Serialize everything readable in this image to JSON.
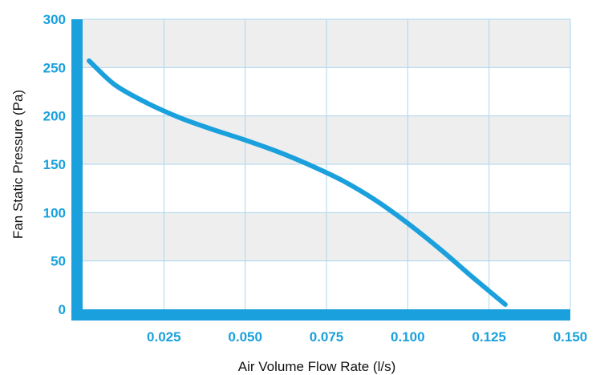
{
  "colors": {
    "axis": "#1aa0dc",
    "line": "#1aa0dc",
    "grid": "#aad6ee",
    "band": "#eeeeee",
    "tick_text": "#1aa0dc",
    "title_text": "#111111"
  },
  "chart_data": {
    "type": "line",
    "title": "",
    "xlabel": "Air Volume Flow Rate (l/s)",
    "ylabel": "Fan Static Pressure (Pa)",
    "xlim": [
      0,
      0.15
    ],
    "ylim": [
      0,
      300
    ],
    "x_ticks": [
      "0.025",
      "0.050",
      "0.075",
      "0.100",
      "0.125",
      "0.150"
    ],
    "y_ticks": [
      "0",
      "50",
      "100",
      "150",
      "200",
      "250",
      "300"
    ],
    "grid": true,
    "alternating_bands": true,
    "series": [
      {
        "x": [
          0.002,
          0.01,
          0.02,
          0.03,
          0.04,
          0.05,
          0.06,
          0.07,
          0.08,
          0.09,
          0.1,
          0.11,
          0.12,
          0.13
        ],
        "y": [
          257,
          232,
          213,
          198,
          186,
          175,
          163,
          149,
          133,
          113,
          89,
          62,
          33,
          5
        ]
      }
    ]
  }
}
